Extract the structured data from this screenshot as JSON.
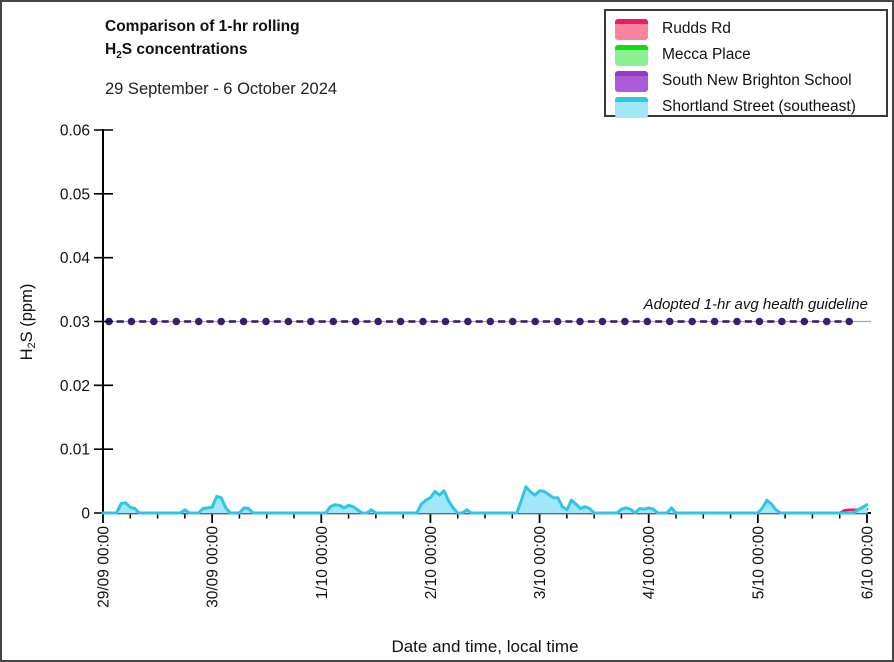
{
  "header": {
    "title_line1": "Comparison of 1-hr rolling",
    "title_line2_pre": "H",
    "title_line2_sub": "2",
    "title_line2_post": "S concentrations",
    "subtitle": "29 September - 6 October 2024"
  },
  "chart_data": {
    "type": "area",
    "xlabel": "Date and time, local time",
    "ylabel_pre": "H",
    "ylabel_sub": "2",
    "ylabel_post": "S (ppm)",
    "ylim": [
      0,
      0.06
    ],
    "yticks": [
      {
        "value": 0,
        "label": "0"
      },
      {
        "value": 0.01,
        "label": "0.01"
      },
      {
        "value": 0.02,
        "label": "0.02"
      },
      {
        "value": 0.03,
        "label": "0.03"
      },
      {
        "value": 0.04,
        "label": "0.04"
      },
      {
        "value": 0.05,
        "label": "0.05"
      },
      {
        "value": 0.06,
        "label": "0.06"
      }
    ],
    "xticks": [
      {
        "hour": 0,
        "label": "29/09 00:00"
      },
      {
        "hour": 24,
        "label": "30/09 00:00"
      },
      {
        "hour": 48,
        "label": "1/10 00:00"
      },
      {
        "hour": 72,
        "label": "2/10 00:00"
      },
      {
        "hour": 96,
        "label": "3/10 00:00"
      },
      {
        "hour": 120,
        "label": "4/10 00:00"
      },
      {
        "hour": 144,
        "label": "5/10 00:00"
      },
      {
        "hour": 168,
        "label": "6/10 00:00"
      }
    ],
    "x_minor_tick_hours": 6,
    "x_total_hours": 168,
    "grid": "off",
    "legend_position": "top-right",
    "guideline": {
      "value": 0.03,
      "label": "Adopted 1-hr avg health guideline",
      "dot_color": "#3A1E6E",
      "underline_color": "#A6A6A6"
    },
    "series": [
      {
        "name": "Rudds Rd",
        "line_color": "#ED1A67",
        "fill_color": "#F9849F",
        "unit": "ppm",
        "default": 0,
        "n_hours": 169,
        "values_sparse": {
          "4": 0.0004,
          "5": 0.0004,
          "25": 0.0004,
          "50": 0.0004,
          "51": 0.0004,
          "70": 0.0005,
          "71": 0.0005,
          "72": 0.0005,
          "73": 0.0005,
          "74": 0.0005,
          "75": 0.0005,
          "76": 0.0005,
          "92": 0.0006,
          "93": 0.0006,
          "94": 0.0006,
          "95": 0.0006,
          "96": 0.0006,
          "97": 0.0006,
          "98": 0.0006,
          "99": 0.0006,
          "100": 0.0005,
          "103": 0.0004,
          "104": 0.0004,
          "145": 0.0005,
          "146": 0.0005,
          "147": 0.0005,
          "163": 0.0004,
          "164": 0.0005,
          "165": 0.0005,
          "166": 0.0005,
          "167": 0.0006,
          "168": 0.0006
        }
      },
      {
        "name": "Mecca Place",
        "line_color": "#0DDE0D",
        "fill_color": "#8AF193",
        "unit": "ppm",
        "default": 0,
        "n_hours": 169,
        "values_sparse": {}
      },
      {
        "name": "South New Brighton School",
        "line_color": "#9637CE",
        "fill_color": "#AB5AD8",
        "unit": "ppm",
        "default": 0,
        "n_hours": 169,
        "values_sparse": {}
      },
      {
        "name": "Shortland Street (southeast)",
        "line_color": "#2FC4E8",
        "fill_color": "#9FE8F8",
        "unit": "ppm",
        "default": 0,
        "n_hours": 169,
        "values_sparse": {
          "4": 0.0015,
          "5": 0.0016,
          "6": 0.0009,
          "7": 0.0007,
          "18": 0.0005,
          "22": 0.0007,
          "23": 0.0008,
          "24": 0.0009,
          "25": 0.0026,
          "26": 0.0024,
          "27": 0.0008,
          "31": 0.0008,
          "32": 0.0007,
          "50": 0.001,
          "51": 0.0013,
          "52": 0.0012,
          "53": 0.0008,
          "54": 0.0012,
          "55": 0.001,
          "56": 0.0005,
          "59": 0.0005,
          "70": 0.0014,
          "71": 0.002,
          "72": 0.0024,
          "73": 0.0034,
          "74": 0.0028,
          "75": 0.0035,
          "76": 0.0019,
          "77": 0.0008,
          "80": 0.0005,
          "92": 0.002,
          "93": 0.0041,
          "94": 0.0033,
          "95": 0.0028,
          "96": 0.0035,
          "97": 0.0034,
          "98": 0.0029,
          "99": 0.0024,
          "100": 0.0024,
          "101": 0.001,
          "102": 0.0005,
          "103": 0.002,
          "104": 0.0014,
          "105": 0.0007,
          "106": 0.001,
          "107": 0.0007,
          "114": 0.0006,
          "115": 0.0008,
          "116": 0.0006,
          "118": 0.0007,
          "119": 0.0006,
          "120": 0.0008,
          "121": 0.0006,
          "125": 0.0008,
          "145": 0.0008,
          "146": 0.002,
          "147": 0.0014,
          "148": 0.0005,
          "166": 0.0005,
          "167": 0.0009,
          "168": 0.0013
        }
      }
    ]
  }
}
